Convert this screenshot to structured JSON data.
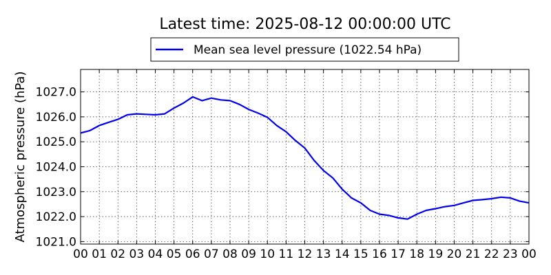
{
  "chart_data": {
    "type": "line",
    "title": "Latest time: 2025-08-12 00:00:00 UTC",
    "ylabel": "Atmospheric pressure (hPa)",
    "xlabel": "",
    "xlim": [
      0,
      24
    ],
    "ylim": [
      1020.9,
      1027.9
    ],
    "grid": true,
    "legend_position": "top-center-above",
    "x_tick_labels": [
      "00",
      "01",
      "02",
      "03",
      "04",
      "05",
      "06",
      "07",
      "08",
      "09",
      "10",
      "11",
      "12",
      "13",
      "14",
      "15",
      "16",
      "17",
      "18",
      "19",
      "20",
      "21",
      "22",
      "23",
      "00"
    ],
    "y_ticks": [
      1021.0,
      1022.0,
      1023.0,
      1024.0,
      1025.0,
      1026.0,
      1027.0
    ],
    "y_tick_labels": [
      "1021.0",
      "1022.0",
      "1023.0",
      "1024.0",
      "1025.0",
      "1026.0",
      "1027.0"
    ],
    "series": [
      {
        "name": "Mean sea level pressure (1022.54 hPa)",
        "color": "#0000ee",
        "x": [
          0,
          0.5,
          1,
          1.5,
          2,
          2.5,
          3,
          3.5,
          4,
          4.5,
          5,
          5.5,
          6,
          6.5,
          7,
          7.5,
          8,
          8.5,
          9,
          9.5,
          10,
          10.5,
          11,
          11.5,
          12,
          12.5,
          13,
          13.5,
          14,
          14.5,
          15,
          15.5,
          16,
          16.5,
          17,
          17.5,
          18,
          18.5,
          19,
          19.5,
          20,
          20.5,
          21,
          21.5,
          22,
          22.5,
          23,
          23.5,
          24
        ],
        "y": [
          1025.35,
          1025.45,
          1025.65,
          1025.78,
          1025.9,
          1026.08,
          1026.12,
          1026.1,
          1026.08,
          1026.12,
          1026.35,
          1026.55,
          1026.8,
          1026.65,
          1026.75,
          1026.68,
          1026.65,
          1026.5,
          1026.3,
          1026.15,
          1025.98,
          1025.65,
          1025.4,
          1025.05,
          1024.75,
          1024.25,
          1023.85,
          1023.55,
          1023.1,
          1022.75,
          1022.55,
          1022.25,
          1022.1,
          1022.05,
          1021.95,
          1021.9,
          1022.1,
          1022.25,
          1022.32,
          1022.4,
          1022.45,
          1022.55,
          1022.65,
          1022.68,
          1022.72,
          1022.78,
          1022.75,
          1022.62,
          1022.55
        ]
      }
    ]
  }
}
